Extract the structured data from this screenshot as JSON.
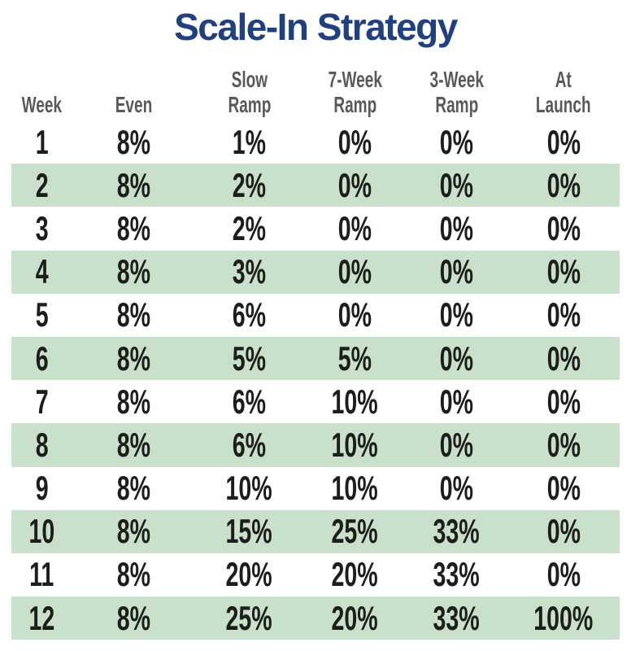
{
  "title": "Scale-In Strategy",
  "colors": {
    "title_text": "#21417e",
    "header_text": "#58595b",
    "value_text": "#1d1d1b",
    "row_highlight": "#c9e0ca",
    "background": "#ffffff"
  },
  "table": {
    "header_lines": [
      {
        "line1": "",
        "line2": "Week"
      },
      {
        "line1": "",
        "line2": "Even"
      },
      {
        "line1": "Slow",
        "line2": "Ramp"
      },
      {
        "line1": "7-Week",
        "line2": "Ramp"
      },
      {
        "line1": "3-Week",
        "line2": "Ramp"
      },
      {
        "line1": "At",
        "line2": "Launch"
      }
    ]
  },
  "chart_data": {
    "type": "table",
    "title": "Scale-In Strategy",
    "columns": [
      "Week",
      "Even",
      "Slow Ramp",
      "7-Week Ramp",
      "3-Week Ramp",
      "At Launch"
    ],
    "rows": [
      [
        "1",
        "8%",
        "1%",
        "0%",
        "0%",
        "0%"
      ],
      [
        "2",
        "8%",
        "2%",
        "0%",
        "0%",
        "0%"
      ],
      [
        "3",
        "8%",
        "2%",
        "0%",
        "0%",
        "0%"
      ],
      [
        "4",
        "8%",
        "3%",
        "0%",
        "0%",
        "0%"
      ],
      [
        "5",
        "8%",
        "6%",
        "0%",
        "0%",
        "0%"
      ],
      [
        "6",
        "8%",
        "5%",
        "5%",
        "0%",
        "0%"
      ],
      [
        "7",
        "8%",
        "6%",
        "10%",
        "0%",
        "0%"
      ],
      [
        "8",
        "8%",
        "6%",
        "10%",
        "0%",
        "0%"
      ],
      [
        "9",
        "8%",
        "10%",
        "10%",
        "0%",
        "0%"
      ],
      [
        "10",
        "8%",
        "15%",
        "25%",
        "33%",
        "0%"
      ],
      [
        "11",
        "8%",
        "20%",
        "20%",
        "33%",
        "0%"
      ],
      [
        "12",
        "8%",
        "25%",
        "20%",
        "33%",
        "100%"
      ]
    ],
    "highlighted_rows": [
      2,
      4,
      6,
      8,
      10,
      12
    ],
    "legend_position": "none",
    "layout": "even-numbered week rows shaded light green; no gridlines or cell borders"
  }
}
